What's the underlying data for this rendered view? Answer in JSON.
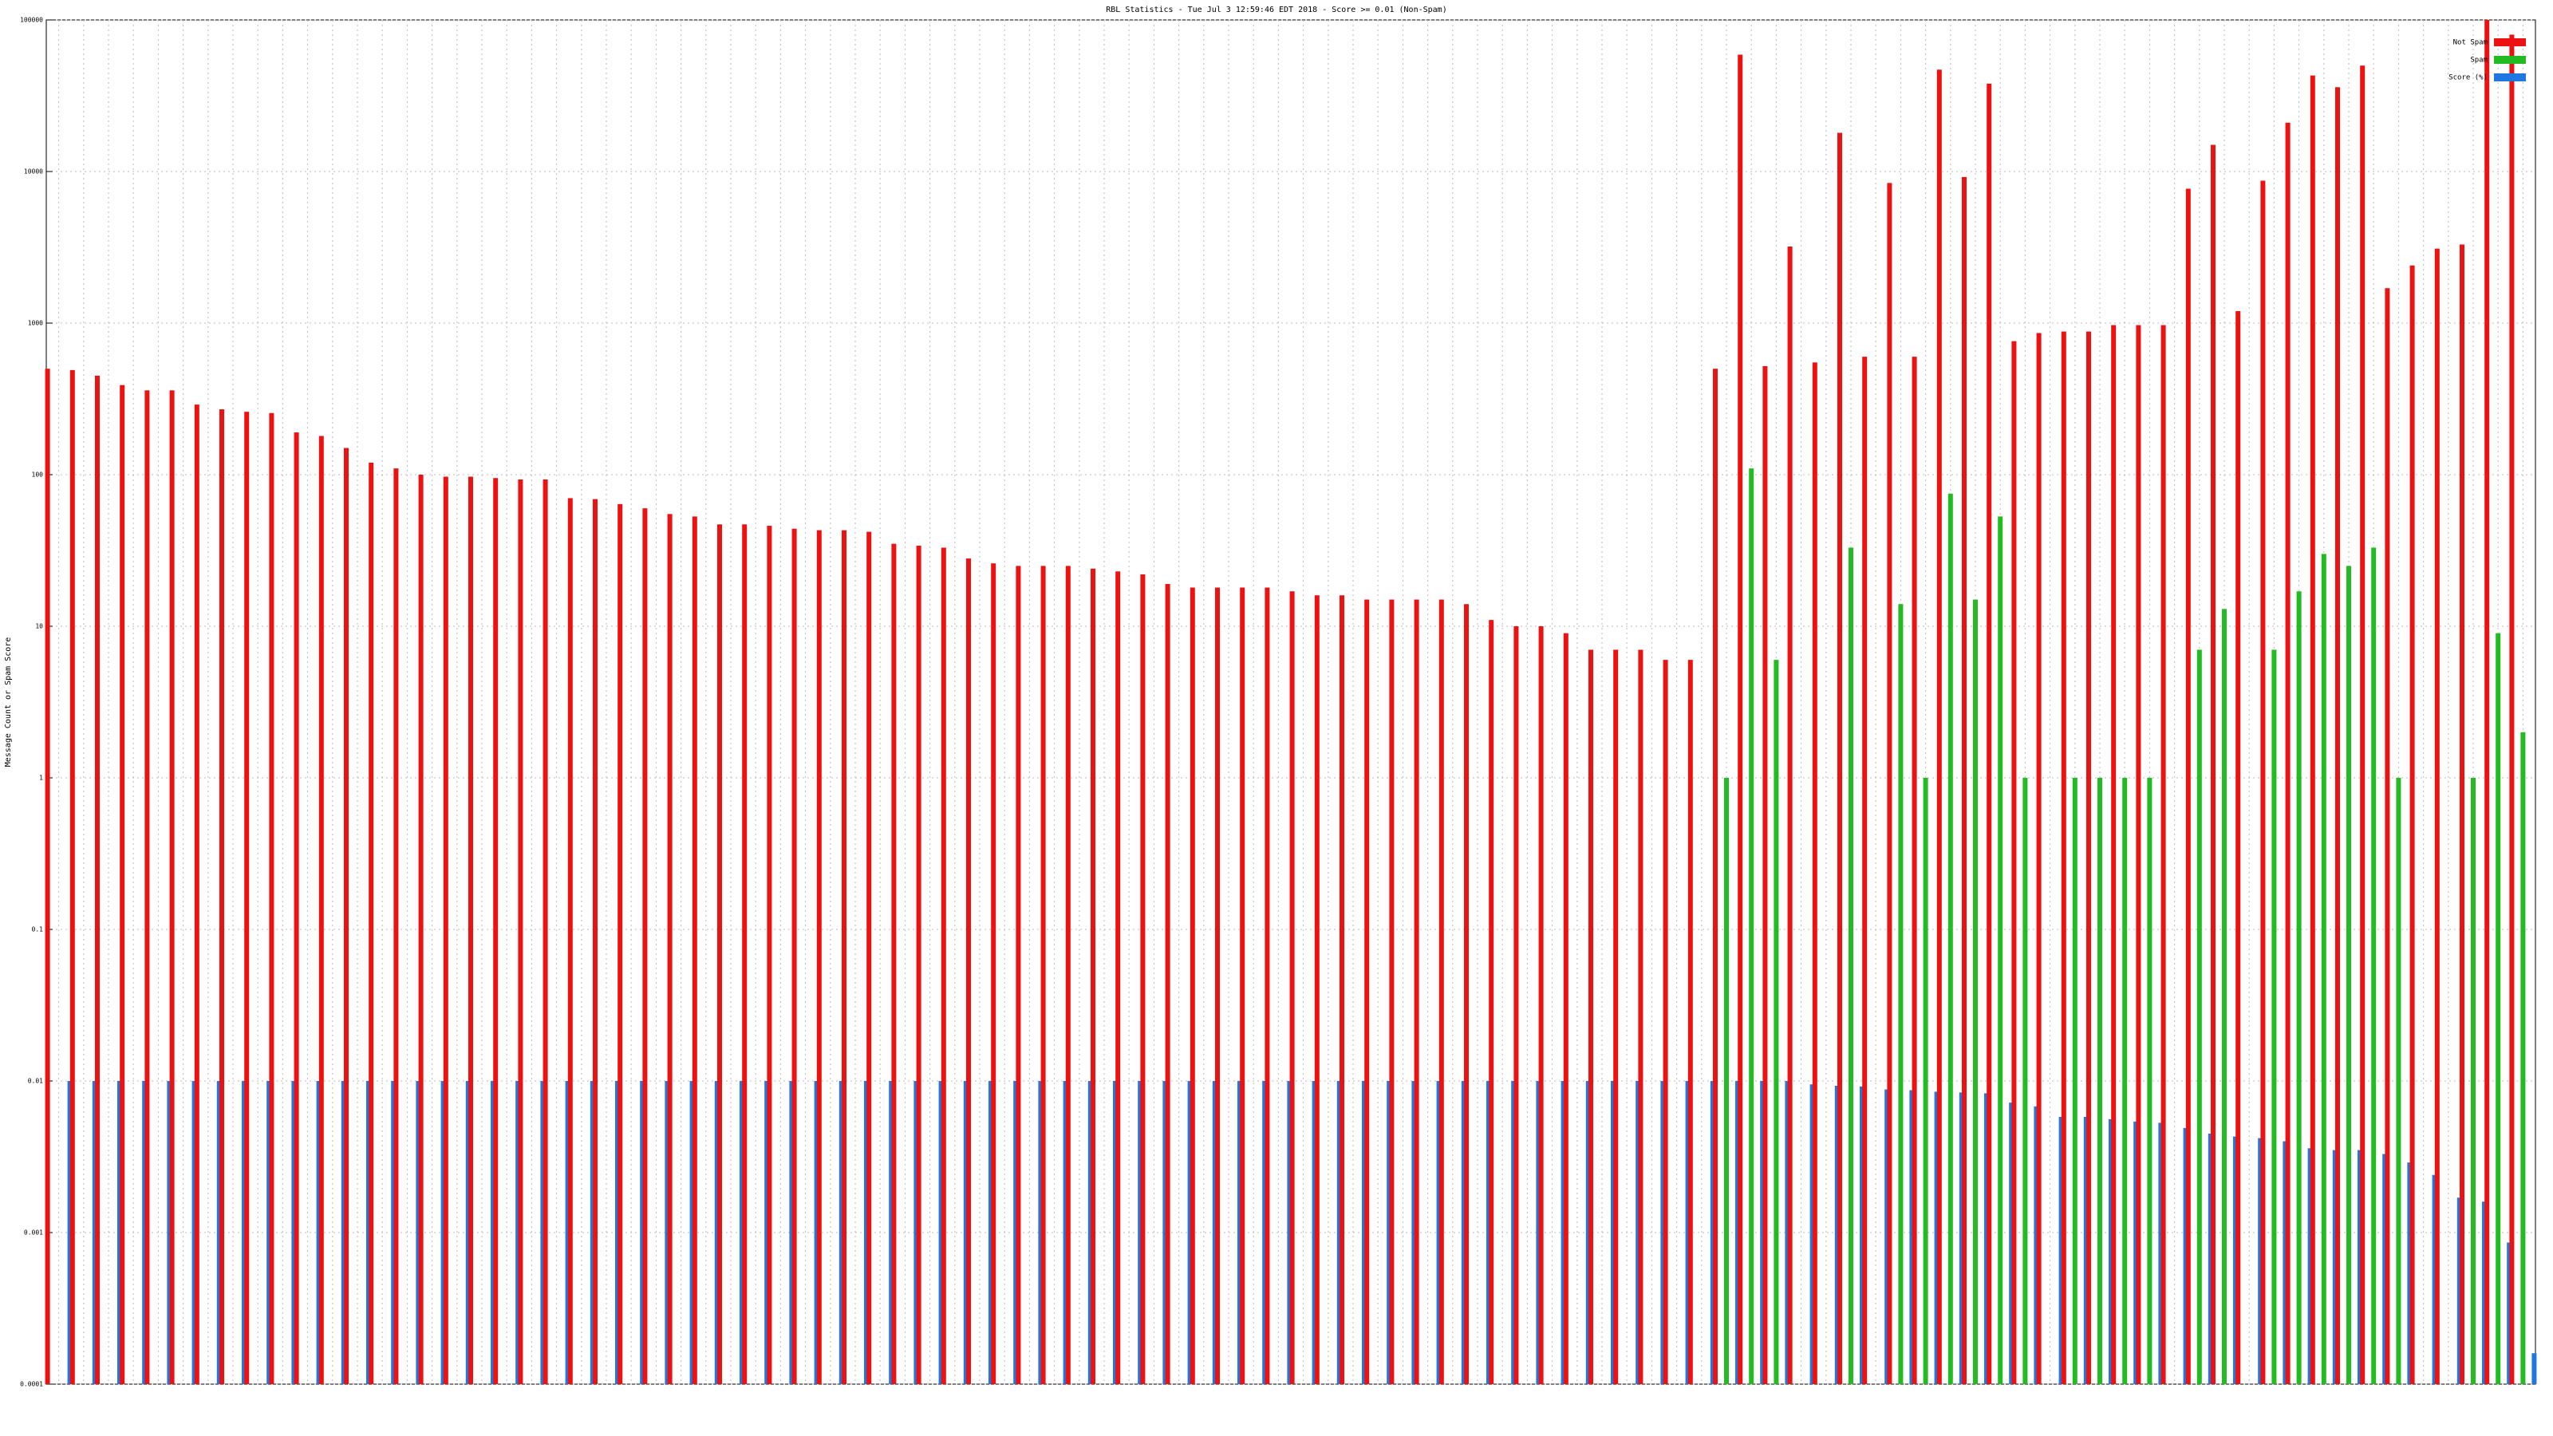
{
  "chart_data": {
    "type": "bar",
    "title": "RBL Statistics - Tue Jul  3 12:59:46 EDT 2018 - Score >= 0.01 (Non-Spam)",
    "y_label": "Message Count or Spam Score",
    "log_scale": true,
    "grid": true,
    "legend": "top-right",
    "ylim": [
      0.0001,
      100000
    ],
    "yticks": [
      0.0001,
      0.001,
      0.01,
      0.1,
      1,
      10,
      100,
      1000,
      10000,
      100000
    ],
    "categories": [
      null,
      null,
      null,
      null,
      null,
      null,
      null,
      null,
      null,
      null,
      null,
      null,
      null,
      null,
      null,
      null,
      null,
      null,
      null,
      null,
      null,
      null,
      null,
      null,
      null,
      null,
      null,
      null,
      null,
      null,
      null,
      null,
      null,
      null,
      null,
      null,
      null,
      null,
      null,
      null,
      null,
      null,
      null,
      null,
      null,
      null,
      null,
      null,
      null,
      null,
      null,
      null,
      null,
      null,
      null,
      null,
      null,
      null,
      null,
      null,
      null,
      null,
      null,
      null,
      null,
      null,
      null,
      null,
      null,
      null,
      null,
      null,
      null,
      null,
      null,
      null,
      null,
      null,
      null,
      null,
      null,
      null,
      null,
      null,
      null,
      null,
      null,
      null,
      null,
      null,
      null,
      null,
      null,
      null,
      null,
      null,
      null,
      null,
      null,
      null
    ],
    "series": [
      {
        "name": "Not Spam",
        "color": "#ee1111",
        "values": [
          500,
          490,
          450,
          390,
          360,
          360,
          290,
          270,
          260,
          255,
          190,
          180,
          150,
          120,
          110,
          100,
          97,
          97,
          95,
          93,
          93,
          70,
          69,
          64,
          60,
          55,
          53,
          47,
          47,
          46,
          44,
          43,
          43,
          42,
          35,
          34,
          33,
          28,
          26,
          25,
          25,
          25,
          24,
          23,
          22,
          19,
          18,
          18,
          18,
          18,
          17,
          16,
          16,
          15,
          15,
          15,
          15,
          14,
          11,
          10,
          10,
          9,
          7,
          7,
          7,
          6,
          6,
          500,
          59000,
          520,
          3200,
          550,
          18000,
          600,
          8400,
          600,
          47000,
          9200,
          38000,
          760,
          860,
          880,
          880,
          970,
          970,
          970,
          7700,
          15000,
          1200,
          8700,
          21000,
          43000,
          36000,
          50000,
          1700,
          2400,
          3100,
          3300,
          100000,
          80000
        ]
      },
      {
        "name": "Spam",
        "color": "#22bb22",
        "values": [
          null,
          null,
          null,
          null,
          null,
          null,
          null,
          null,
          null,
          null,
          null,
          null,
          null,
          null,
          null,
          null,
          null,
          null,
          null,
          null,
          null,
          null,
          null,
          null,
          null,
          null,
          null,
          null,
          null,
          null,
          null,
          null,
          null,
          null,
          null,
          null,
          null,
          null,
          null,
          null,
          null,
          null,
          null,
          null,
          null,
          null,
          null,
          null,
          null,
          null,
          null,
          null,
          null,
          null,
          null,
          null,
          null,
          null,
          null,
          null,
          null,
          null,
          null,
          null,
          null,
          null,
          null,
          1,
          110,
          6,
          null,
          null,
          33,
          null,
          14,
          1,
          75,
          15,
          53,
          1,
          null,
          1,
          1,
          1,
          1,
          null,
          7,
          13,
          null,
          7,
          17,
          30,
          25,
          33,
          1,
          null,
          null,
          1,
          9,
          2
        ]
      },
      {
        "name": "Score (%)",
        "color": "#1e78e0",
        "values": [
          0.01,
          0.01,
          0.01,
          0.01,
          0.01,
          0.01,
          0.01,
          0.01,
          0.01,
          0.01,
          0.01,
          0.01,
          0.01,
          0.01,
          0.01,
          0.01,
          0.01,
          0.01,
          0.01,
          0.01,
          0.01,
          0.01,
          0.01,
          0.01,
          0.01,
          0.01,
          0.01,
          0.01,
          0.01,
          0.01,
          0.01,
          0.01,
          0.01,
          0.01,
          0.01,
          0.01,
          0.01,
          0.01,
          0.01,
          0.01,
          0.01,
          0.01,
          0.01,
          0.01,
          0.01,
          0.01,
          0.01,
          0.01,
          0.01,
          0.01,
          0.01,
          0.01,
          0.01,
          0.01,
          0.01,
          0.01,
          0.01,
          0.01,
          0.01,
          0.01,
          0.01,
          0.01,
          0.01,
          0.01,
          0.01,
          0.01,
          0.01,
          0.01,
          0.01,
          0.01,
          0.0095,
          0.0093,
          0.0092,
          0.0088,
          0.0087,
          0.0085,
          0.0084,
          0.0083,
          0.0072,
          0.0068,
          0.0058,
          0.0058,
          0.0056,
          0.0054,
          0.0053,
          0.0049,
          0.0045,
          0.0043,
          0.0042,
          0.004,
          0.0036,
          0.0035,
          0.0035,
          0.0033,
          0.0029,
          0.0024,
          0.0017,
          0.0016,
          0.00086,
          0.00016
        ]
      }
    ]
  }
}
